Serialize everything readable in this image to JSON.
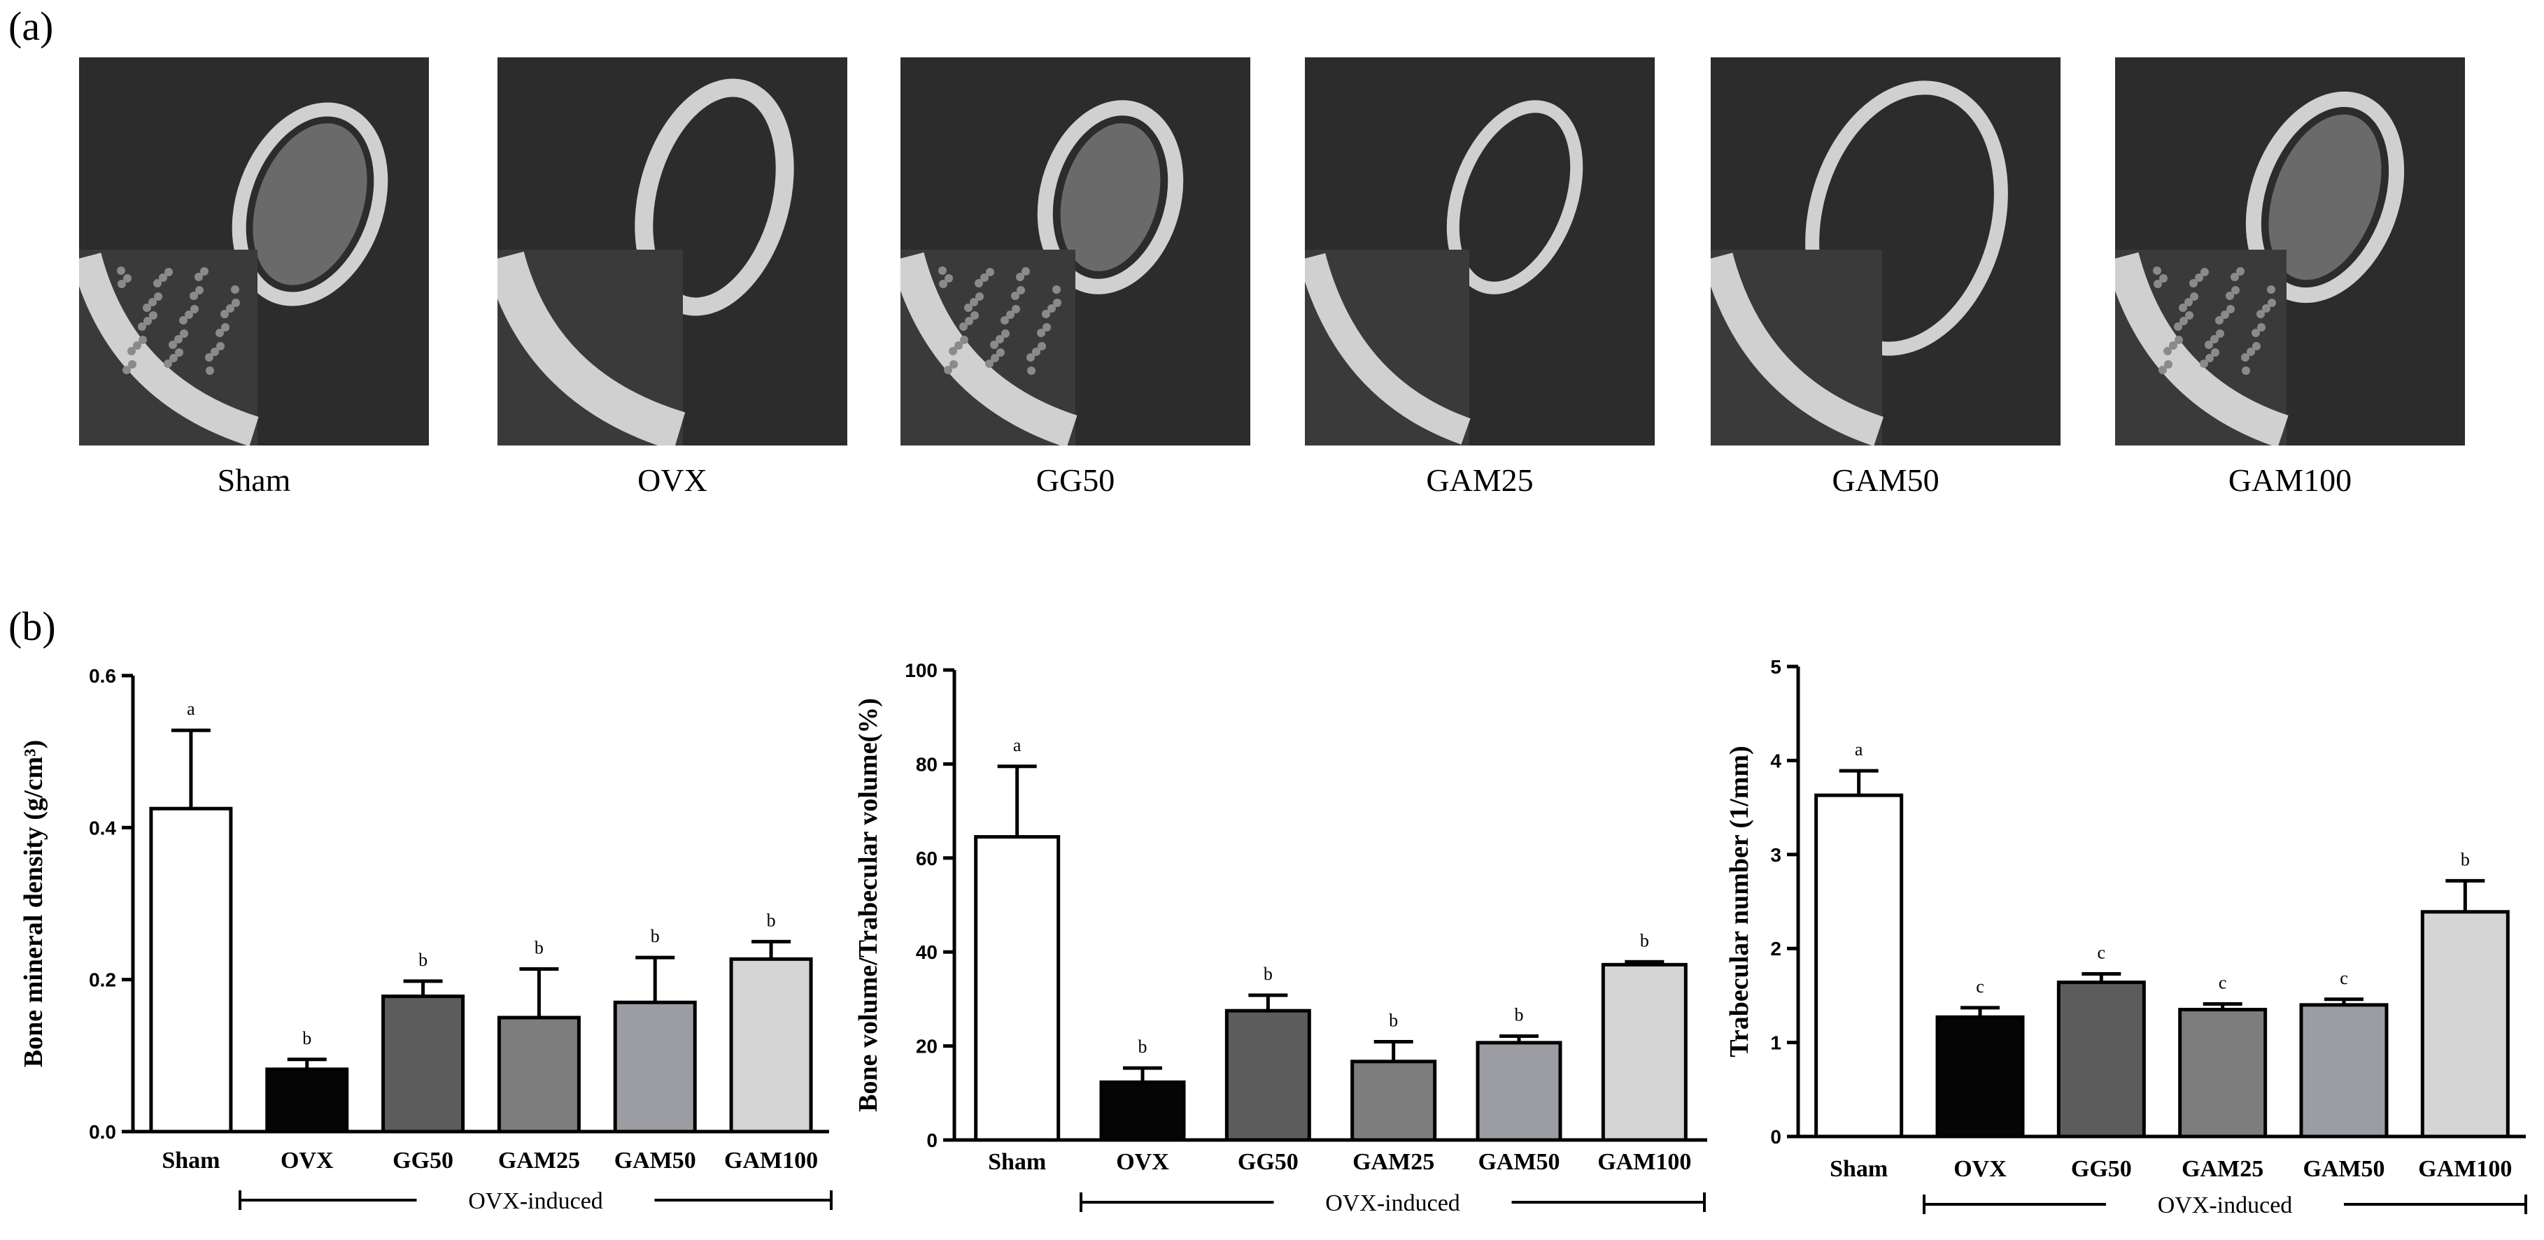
{
  "panel_a_label": "(a)",
  "panel_b_label": "(b)",
  "micro_ct_images": [
    {
      "label": "Sham"
    },
    {
      "label": "OVX"
    },
    {
      "label": "GG50"
    },
    {
      "label": "GAM25"
    },
    {
      "label": "GAM50"
    },
    {
      "label": "GAM100"
    }
  ],
  "colors": {
    "Sham": "#ffffff",
    "OVX": "#050505",
    "GG50": "#5c5c5c",
    "GAM25": "#7d7d7d",
    "GAM50": "#9c9ca3",
    "GAM100": "#d4d4d4",
    "scan_background": "#2c2c2c",
    "bone": "#d0d0d0"
  },
  "chart_data": [
    {
      "type": "bar",
      "ylabel": "Bone mineral density (g/cm³)",
      "ylim": [
        0,
        0.6
      ],
      "yticks": [
        "0.0",
        "0.2",
        "0.4",
        "0.6"
      ],
      "categories": [
        "Sham",
        "OVX",
        "GG50",
        "GAM25",
        "GAM50",
        "GAM100"
      ],
      "values": [
        0.425,
        0.082,
        0.178,
        0.15,
        0.17,
        0.227
      ],
      "errors": [
        0.103,
        0.013,
        0.02,
        0.064,
        0.059,
        0.023
      ],
      "significance": [
        "a",
        "b",
        "b",
        "b",
        "b",
        "b"
      ],
      "group_label": "OVX-induced"
    },
    {
      "type": "bar",
      "ylabel": "Bone volume/Trabecular volume(%)",
      "ylim": [
        0,
        100
      ],
      "yticks": [
        "0",
        "20",
        "40",
        "60",
        "80",
        "100"
      ],
      "categories": [
        "Sham",
        "OVX",
        "GG50",
        "GAM25",
        "GAM50",
        "GAM100"
      ],
      "values": [
        64.5,
        12.3,
        27.5,
        16.7,
        20.7,
        37.3
      ],
      "errors": [
        15.0,
        3.0,
        3.3,
        4.2,
        1.4,
        0.6
      ],
      "significance": [
        "a",
        "b",
        "b",
        "b",
        "b",
        "b"
      ],
      "group_label": "OVX-induced"
    },
    {
      "type": "bar",
      "ylabel": "Trabecular number (1/mm)",
      "ylim": [
        0,
        5
      ],
      "yticks": [
        "0",
        "1",
        "2",
        "3",
        "4",
        "5"
      ],
      "categories": [
        "Sham",
        "OVX",
        "GG50",
        "GAM25",
        "GAM50",
        "GAM100"
      ],
      "values": [
        3.63,
        1.27,
        1.64,
        1.35,
        1.4,
        2.39
      ],
      "errors": [
        0.26,
        0.1,
        0.09,
        0.06,
        0.06,
        0.33
      ],
      "significance": [
        "a",
        "c",
        "c",
        "c",
        "c",
        "b"
      ],
      "group_label": "OVX-induced"
    }
  ]
}
